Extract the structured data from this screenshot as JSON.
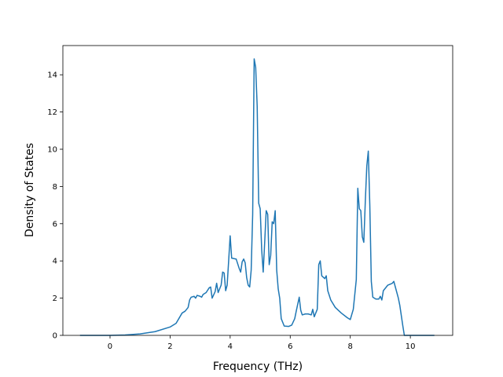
{
  "chart_data": {
    "type": "line",
    "xlabel": "Frequency (THz)",
    "ylabel": "Density of States",
    "x": [
      -1.0,
      0,
      0.5,
      1.0,
      1.5,
      2.0,
      2.2,
      2.4,
      2.5,
      2.6,
      2.65,
      2.7,
      2.8,
      2.85,
      2.9,
      3.0,
      3.05,
      3.1,
      3.2,
      3.3,
      3.35,
      3.4,
      3.5,
      3.55,
      3.6,
      3.7,
      3.75,
      3.8,
      3.85,
      3.9,
      3.95,
      4.0,
      4.05,
      4.2,
      4.3,
      4.35,
      4.4,
      4.45,
      4.5,
      4.55,
      4.6,
      4.65,
      4.7,
      4.75,
      4.8,
      4.85,
      4.9,
      4.95,
      5.0,
      5.05,
      5.1,
      5.15,
      5.2,
      5.25,
      5.3,
      5.35,
      5.4,
      5.45,
      5.5,
      5.55,
      5.6,
      5.65,
      5.7,
      5.8,
      5.95,
      6.05,
      6.15,
      6.2,
      6.3,
      6.35,
      6.4,
      6.5,
      6.6,
      6.7,
      6.75,
      6.8,
      6.9,
      6.95,
      7.0,
      7.05,
      7.15,
      7.2,
      7.25,
      7.35,
      7.5,
      7.7,
      7.9,
      8.0,
      8.1,
      8.2,
      8.25,
      8.3,
      8.35,
      8.4,
      8.45,
      8.5,
      8.55,
      8.6,
      8.65,
      8.7,
      8.75,
      8.85,
      8.95,
      9.0,
      9.05,
      9.1,
      9.25,
      9.4,
      9.45,
      9.5,
      9.6,
      9.65,
      9.75,
      9.8,
      10.0,
      10.8
    ],
    "series": [
      {
        "color": "#1f77b4",
        "values": [
          0,
          0,
          0.02,
          0.08,
          0.2,
          0.45,
          0.65,
          1.2,
          1.3,
          1.5,
          1.9,
          2.05,
          2.1,
          2.0,
          2.15,
          2.1,
          2.05,
          2.2,
          2.3,
          2.55,
          2.6,
          2.0,
          2.35,
          2.8,
          2.3,
          2.7,
          3.4,
          3.35,
          2.4,
          2.7,
          4.0,
          5.35,
          4.15,
          4.1,
          3.6,
          3.4,
          3.95,
          4.1,
          3.9,
          3.1,
          2.7,
          2.6,
          3.5,
          6.5,
          14.85,
          14.4,
          12.3,
          7.1,
          6.8,
          4.6,
          3.4,
          5.0,
          6.7,
          6.5,
          3.8,
          4.3,
          6.1,
          6.0,
          6.7,
          3.5,
          2.5,
          2.0,
          0.9,
          0.5,
          0.48,
          0.55,
          0.9,
          1.3,
          2.05,
          1.35,
          1.1,
          1.15,
          1.15,
          1.1,
          1.4,
          1.0,
          1.4,
          3.8,
          4.0,
          3.2,
          3.05,
          3.2,
          2.4,
          1.9,
          1.5,
          1.2,
          0.95,
          0.85,
          1.4,
          3.0,
          7.9,
          6.8,
          6.7,
          5.3,
          5.0,
          7.2,
          9.1,
          9.9,
          7.0,
          2.9,
          2.05,
          1.95,
          1.95,
          2.1,
          1.9,
          2.4,
          2.7,
          2.8,
          2.9,
          2.6,
          2.0,
          1.6,
          0.5,
          0,
          0,
          0
        ]
      }
    ],
    "xlim": [
      -1.57,
      11.41
    ],
    "xticks": [
      0,
      2,
      4,
      6,
      8,
      10
    ],
    "ylim": [
      0,
      15.57
    ],
    "yticks": [
      0,
      2,
      4,
      6,
      8,
      10,
      12,
      14
    ],
    "grid": false
  }
}
